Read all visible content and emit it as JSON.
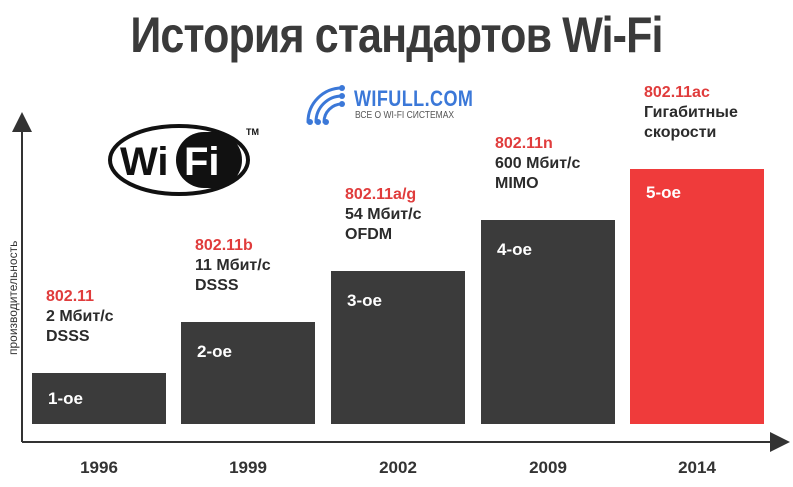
{
  "title": "История стандартов Wi-Fi",
  "brand": {
    "name": "WIFULL.COM",
    "tagline": "ВСЕ О WI-FI СИСТЕМАХ"
  },
  "logo": {
    "text_wi": "Wi",
    "text_fi": "Fi",
    "tm": "TM"
  },
  "colors": {
    "bar": "#3b3b3b",
    "bar_highlight": "#ef3b3b",
    "standard_text": "#e03c3c",
    "title": "#3a3a3a"
  },
  "chart_data": {
    "type": "bar",
    "ylabel": "производительность",
    "categories": [
      "1996",
      "1999",
      "2002",
      "2009",
      "2014"
    ],
    "values": [
      1,
      2,
      3,
      4,
      5
    ],
    "bar_labels": [
      "1-ое",
      "2-ое",
      "3-ое",
      "4-ое",
      "5-ое"
    ],
    "highlight_index": 4,
    "annotations": [
      {
        "standard": "802.11",
        "lines": [
          "2 Мбит/с",
          "DSSS"
        ]
      },
      {
        "standard": "802.11b",
        "lines": [
          "11 Мбит/с",
          "DSSS"
        ]
      },
      {
        "standard": "802.11a/g",
        "lines": [
          "54 Мбит/с",
          "OFDM"
        ]
      },
      {
        "standard": "802.11n",
        "lines": [
          "600 Мбит/с",
          "MIMO"
        ]
      },
      {
        "standard": "802.11ac",
        "lines": [
          "Гигабитные",
          "скорости"
        ]
      }
    ],
    "legend": "none",
    "grid": false
  }
}
